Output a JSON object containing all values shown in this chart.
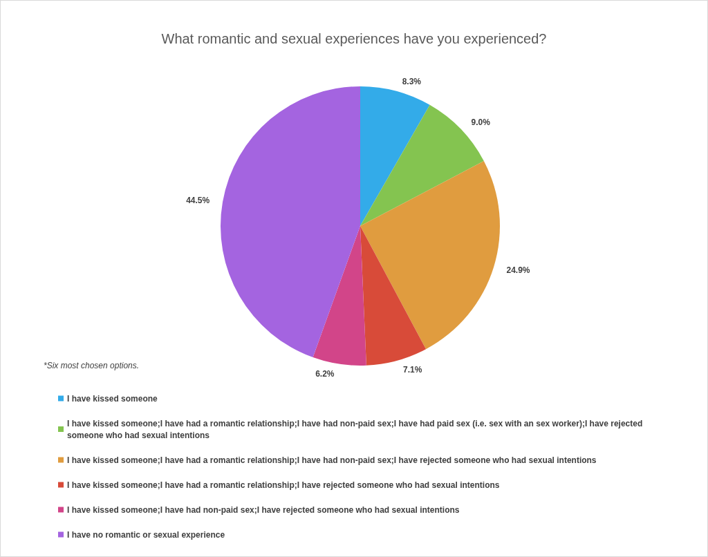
{
  "chart_data": {
    "type": "pie",
    "title": "What romantic and sexual experiences have you experienced?",
    "categories": [
      "I have kissed someone",
      "I have kissed someone;I have had a romantic relationship;I have had non-paid sex;I have had paid sex (i.e. sex with an sex worker);I have rejected someone who had sexual intentions",
      "I have kissed someone;I have had a romantic relationship;I have had non-paid sex;I have rejected someone who had sexual intentions",
      "I have kissed someone;I have had a romantic relationship;I have rejected someone who had sexual intentions",
      "I have kissed someone;I have had non-paid sex;I have rejected someone who had sexual intentions",
      "I have no romantic or sexual experience"
    ],
    "values": [
      8.3,
      9.0,
      24.9,
      7.1,
      6.2,
      44.5
    ],
    "value_labels": [
      "8.3%",
      "9.0%",
      "24.9%",
      "7.1%",
      "6.2%",
      "44.5%"
    ],
    "colors": [
      "#33abe9",
      "#84c450",
      "#e09c3f",
      "#d84b39",
      "#d24589",
      "#a464e0"
    ],
    "legend": "bottom left",
    "annotations": [
      "*Six most chosen options."
    ]
  }
}
